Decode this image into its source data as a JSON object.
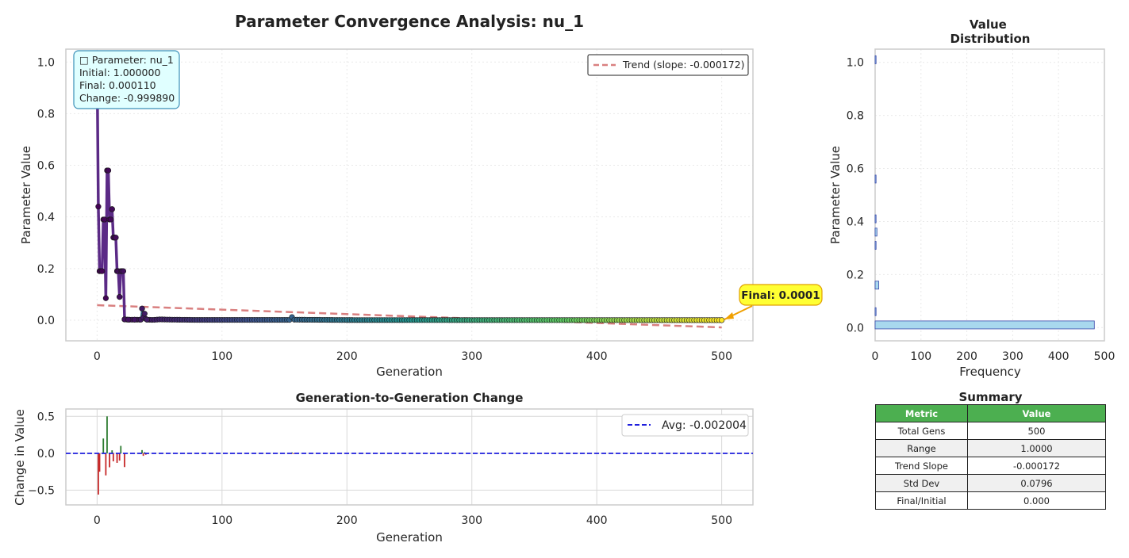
{
  "figure_title": "Parameter Convergence Analysis: nu_1",
  "colors": {
    "trend": "#d98080",
    "final_box": "#ffff33",
    "final_box_edge": "#e0a000",
    "info_box": "#e0ffff",
    "info_edge": "#3a8fb7",
    "positive_change": "#2e7d32",
    "negative_change": "#c62828",
    "avg_line": "#1f1fdd",
    "hist_fill": "#a8d8ee",
    "hist_edge": "#3949ab",
    "table_header": "#4caf50"
  },
  "info_box": {
    "icon": "□",
    "parameter": "Parameter: nu_1",
    "initial": "Initial: 1.000000",
    "final": "Final: 0.000110",
    "change": "Change: -0.999890"
  },
  "final_annotation": "Final: 0.0001",
  "chart_data": [
    {
      "type": "line",
      "id": "main",
      "title": "Parameter Convergence Analysis: nu_1",
      "xlabel": "Generation",
      "ylabel": "Parameter Value",
      "xlim": [
        -25,
        525
      ],
      "ylim": [
        -0.08,
        1.05
      ],
      "xticks": [
        0,
        100,
        200,
        300,
        400,
        500
      ],
      "yticks": [
        0.0,
        0.2,
        0.4,
        0.6,
        0.8,
        1.0
      ],
      "ytick_labels": [
        "0.0",
        "0.2",
        "0.4",
        "0.6",
        "0.8",
        "1.0"
      ],
      "grid": true,
      "legend_position": "top-right",
      "series": [
        {
          "name": "",
          "points": [
            [
              0,
              1.0
            ],
            [
              1,
              0.44
            ],
            [
              2,
              0.19
            ],
            [
              3,
              0.19
            ],
            [
              4,
              0.19
            ],
            [
              5,
              0.39
            ],
            [
              6,
              0.39
            ],
            [
              7,
              0.085
            ],
            [
              8,
              0.58
            ],
            [
              9,
              0.58
            ],
            [
              10,
              0.39
            ],
            [
              11,
              0.39
            ],
            [
              12,
              0.43
            ],
            [
              13,
              0.32
            ],
            [
              14,
              0.32
            ],
            [
              15,
              0.32
            ],
            [
              16,
              0.19
            ],
            [
              17,
              0.19
            ],
            [
              18,
              0.09
            ],
            [
              19,
              0.19
            ],
            [
              20,
              0.19
            ],
            [
              21,
              0.19
            ],
            [
              22,
              0.003
            ],
            [
              25,
              0.002
            ],
            [
              30,
              0.002
            ],
            [
              35,
              0.002
            ],
            [
              36,
              0.045
            ],
            [
              37,
              0.01
            ],
            [
              38,
              0.025
            ],
            [
              39,
              0.005
            ],
            [
              40,
              0.002
            ],
            [
              45,
              0.001
            ],
            [
              50,
              0.003
            ],
            [
              60,
              0.002
            ],
            [
              80,
              0.001
            ],
            [
              100,
              0.001
            ],
            [
              155,
              0.001
            ],
            [
              156,
              0.012
            ],
            [
              157,
              0.002
            ],
            [
              200,
              0.0005
            ],
            [
              300,
              0.0003
            ],
            [
              400,
              0.0002
            ],
            [
              500,
              0.00011
            ]
          ]
        },
        {
          "name": "Trend (slope: -0.000172)",
          "points": [
            [
              0,
              0.058
            ],
            [
              500,
              -0.028
            ]
          ]
        }
      ]
    },
    {
      "type": "bar",
      "id": "hist",
      "title": "Value Distribution",
      "orientation": "horizontal",
      "xlabel": "Frequency",
      "ylabel": "Parameter Value",
      "xlim": [
        0,
        500
      ],
      "ylim": [
        -0.05,
        1.05
      ],
      "xticks": [
        0,
        100,
        200,
        300,
        400,
        500
      ],
      "yticks": [
        0.0,
        0.2,
        0.4,
        0.6,
        0.8,
        1.0
      ],
      "ytick_labels": [
        "0.0",
        "0.2",
        "0.4",
        "0.6",
        "0.8",
        "1.0"
      ],
      "bin_width": 0.05,
      "bins": [
        [
          0.0,
          478
        ],
        [
          0.05,
          1
        ],
        [
          0.15,
          8
        ],
        [
          0.3,
          2
        ],
        [
          0.35,
          4
        ],
        [
          0.4,
          1
        ],
        [
          0.55,
          2
        ],
        [
          1.0,
          2
        ]
      ]
    },
    {
      "type": "bar",
      "id": "changes",
      "title": "Generation-to-Generation Change",
      "xlabel": "Generation",
      "ylabel": "Change in Value",
      "xlim": [
        -25,
        525
      ],
      "ylim": [
        -0.7,
        0.6
      ],
      "xticks": [
        0,
        100,
        200,
        300,
        400,
        500
      ],
      "yticks": [
        -0.5,
        0.0,
        0.5
      ],
      "ytick_labels": [
        "−0.5",
        "0.0",
        "0.5"
      ],
      "legend_position": "top-right",
      "avg_label": "Avg: -0.002004",
      "avg_value": -0.002004,
      "deltas": [
        [
          1,
          -0.56
        ],
        [
          2,
          -0.25
        ],
        [
          5,
          0.2
        ],
        [
          7,
          -0.3
        ],
        [
          8,
          0.5
        ],
        [
          10,
          -0.19
        ],
        [
          12,
          0.04
        ],
        [
          13,
          -0.11
        ],
        [
          16,
          -0.13
        ],
        [
          18,
          -0.1
        ],
        [
          19,
          0.1
        ],
        [
          22,
          -0.187
        ],
        [
          36,
          0.043
        ],
        [
          37,
          -0.035
        ],
        [
          38,
          0.015
        ],
        [
          39,
          -0.02
        ],
        [
          40,
          -0.003
        ],
        [
          156,
          0.011
        ],
        [
          157,
          -0.01
        ]
      ]
    }
  ],
  "summary_table": {
    "title": "Summary",
    "headers": [
      "Metric",
      "Value"
    ],
    "rows": [
      [
        "Total Gens",
        "500"
      ],
      [
        "Range",
        "1.0000"
      ],
      [
        "Trend Slope",
        "-0.000172"
      ],
      [
        "Std Dev",
        "0.0796"
      ],
      [
        "Final/Initial",
        "0.000"
      ]
    ]
  }
}
